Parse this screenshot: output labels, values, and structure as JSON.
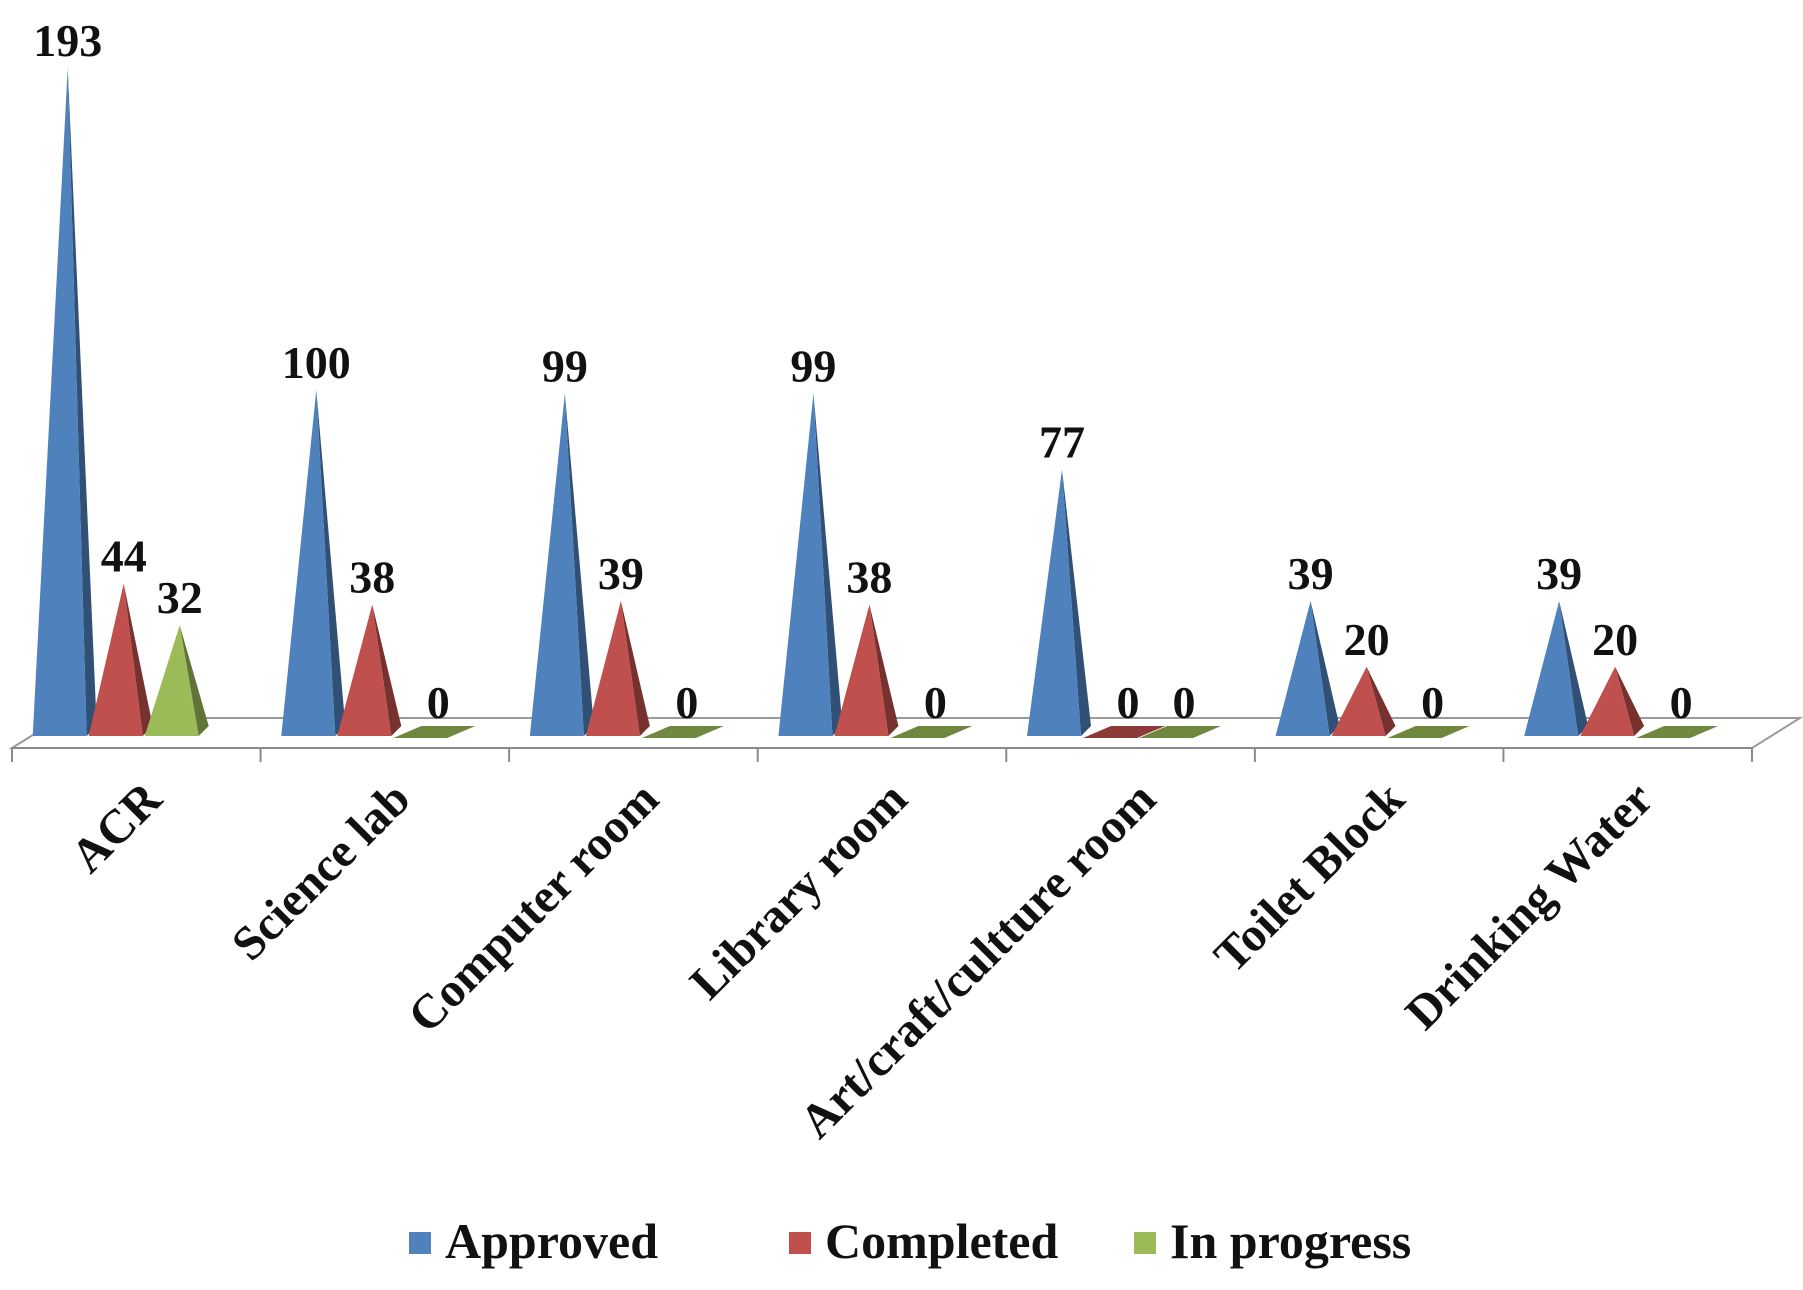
{
  "chart_data": {
    "type": "bar",
    "style": "3d-pyramid",
    "categories": [
      "ACR",
      "Science lab",
      "Computer room",
      "Library room",
      "Art/craft/cultture room",
      "Toilet Block",
      "Drinking Water"
    ],
    "series": [
      {
        "name": "Approved",
        "color": "#4F81BD",
        "values": [
          193,
          100,
          99,
          99,
          77,
          39,
          39
        ]
      },
      {
        "name": "Completed",
        "color": "#C0504D",
        "values": [
          44,
          38,
          39,
          38,
          0,
          20,
          20
        ]
      },
      {
        "name": "In progress",
        "color": "#9BBB59",
        "values": [
          32,
          0,
          0,
          0,
          0,
          0,
          0
        ]
      }
    ],
    "ylim": [
      0,
      193
    ],
    "grid": false,
    "data_labels": true,
    "legend": "bottom"
  }
}
